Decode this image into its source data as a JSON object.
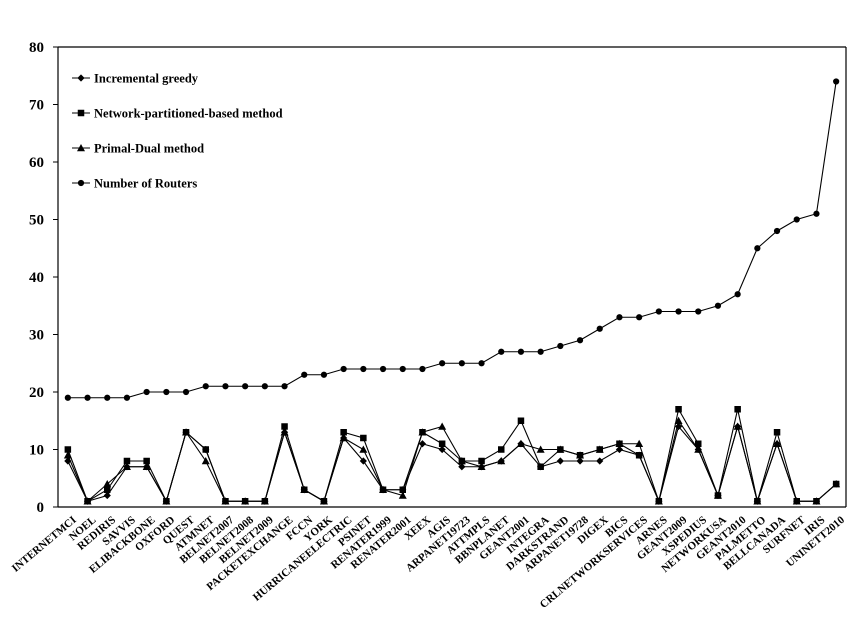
{
  "chart_data": {
    "type": "line",
    "title": "",
    "xlabel": "",
    "ylabel": "",
    "ylim": [
      0,
      80
    ],
    "yticks": [
      0,
      10,
      20,
      30,
      40,
      50,
      60,
      70,
      80
    ],
    "grid": false,
    "legend_position": "top-left",
    "categories": [
      "INTERNETMCI",
      "NOEL",
      "REDIRIS",
      "SAVVIS",
      "ELIBACKBONE",
      "OXFORD",
      "QUEST",
      "ATMNET",
      "BELNET2007",
      "BELNET2008",
      "BELNET2009",
      "PACKETEXCHANGE",
      "FCCN",
      "YORK",
      "HURRICANEELECTRIC",
      "PSINET",
      "RENATER1999",
      "RENATER2001",
      "XEEX",
      "AGIS",
      "ARPANET19723",
      "ATTMPLS",
      "BBNPLANET",
      "GEANT2001",
      "INTEGRA",
      "DARKSTRAND",
      "ARPANET19728",
      "DIGEX",
      "BICS",
      "CRLNETWORKSERVICES",
      "ARNES",
      "GEANT2009",
      "XSPEDIUS",
      "NETWORKUSA",
      "GEANT2010",
      "PALMETTO",
      "BELLCANADA",
      "SURFNET",
      "IRIS",
      "UNINETT2010"
    ],
    "series": [
      {
        "name": "Incremental greedy",
        "marker": "diamond",
        "values": [
          8,
          1,
          2,
          7,
          7,
          1,
          13,
          10,
          1,
          1,
          1,
          13,
          3,
          1,
          12,
          8,
          3,
          3,
          11,
          10,
          7,
          7,
          8,
          11,
          7,
          8,
          8,
          8,
          10,
          9,
          1,
          14,
          10,
          2,
          14,
          1,
          11,
          1,
          1,
          4
        ]
      },
      {
        "name": "Network-partitioned-based method",
        "marker": "square",
        "values": [
          10,
          1,
          3,
          8,
          8,
          1,
          13,
          10,
          1,
          1,
          1,
          14,
          3,
          1,
          13,
          12,
          3,
          3,
          13,
          11,
          8,
          8,
          10,
          15,
          7,
          10,
          9,
          10,
          11,
          9,
          1,
          17,
          11,
          2,
          17,
          1,
          13,
          1,
          1,
          4
        ]
      },
      {
        "name": "Primal-Dual method",
        "marker": "triangle",
        "values": [
          9,
          1,
          4,
          7,
          7,
          1,
          13,
          8,
          1,
          1,
          1,
          13,
          3,
          1,
          12,
          10,
          3,
          2,
          13,
          14,
          8,
          7,
          8,
          11,
          10,
          10,
          9,
          10,
          11,
          11,
          1,
          15,
          10,
          2,
          14,
          1,
          11,
          1,
          1,
          4
        ]
      },
      {
        "name": "Number of Routers",
        "marker": "circle",
        "values": [
          19,
          19,
          19,
          19,
          20,
          20,
          20,
          21,
          21,
          21,
          21,
          21,
          23,
          23,
          24,
          24,
          24,
          24,
          24,
          25,
          25,
          25,
          27,
          27,
          27,
          28,
          29,
          31,
          33,
          33,
          34,
          34,
          34,
          35,
          37,
          45,
          48,
          50,
          51,
          74
        ]
      }
    ]
  }
}
